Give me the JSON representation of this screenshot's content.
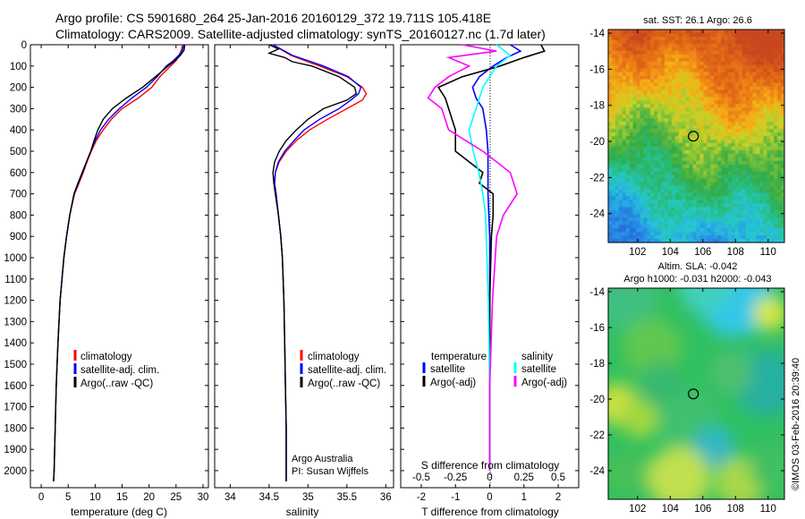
{
  "header": {
    "line1": "Argo profile: CS 5901680_264 25-Jan-2016 20160129_372 19.711S 105.418E",
    "line2": "Climatology: CARS2009. Satellite-adjusted climatology: synTS_20160127.nc (1.7d later)"
  },
  "colors": {
    "climatology": "#ff0000",
    "satellite": "#0000ff",
    "argo": "#000000",
    "cyan": "#00ffff",
    "magenta": "#ff00ff"
  },
  "chart_data": [
    {
      "type": "line",
      "panel": "temperature",
      "xlabel": "temperature (deg C)",
      "xlim": [
        -2,
        31
      ],
      "xticks": [
        "0",
        "5",
        "10",
        "15",
        "20",
        "25",
        "30"
      ],
      "ylim": [
        0,
        2080
      ],
      "yticks": [
        "0",
        "100",
        "200",
        "300",
        "400",
        "500",
        "600",
        "700",
        "800",
        "900",
        "1000",
        "1100",
        "1200",
        "1300",
        "1400",
        "1500",
        "1600",
        "1700",
        "1800",
        "1900",
        "2000"
      ],
      "legend": [
        "climatology",
        "satellite-adj. clim.",
        "Argo(..raw -QC)"
      ],
      "series": [
        {
          "name": "climatology",
          "color": "climatology",
          "depth": [
            0,
            25,
            50,
            75,
            100,
            150,
            200,
            250,
            300,
            350,
            400,
            450,
            500,
            550,
            600,
            650,
            700,
            800,
            900,
            1000,
            1200,
            1400,
            1600,
            1800,
            2000,
            2050
          ],
          "values": [
            26.2,
            26.0,
            25.6,
            25.0,
            24.0,
            22.0,
            20.5,
            18.0,
            15.0,
            13.0,
            11.5,
            10.2,
            9.3,
            8.5,
            7.8,
            7.0,
            6.2,
            5.3,
            4.7,
            4.2,
            3.5,
            3.1,
            2.8,
            2.6,
            2.4,
            2.3
          ]
        },
        {
          "name": "satellite-adj. clim.",
          "color": "satellite",
          "depth": [
            0,
            25,
            50,
            75,
            100,
            150,
            200,
            250,
            300,
            350,
            400,
            450,
            500,
            550,
            600,
            650,
            700,
            800,
            900,
            1000,
            1200,
            1400,
            1600,
            1800,
            2000,
            2050
          ],
          "values": [
            26.4,
            26.2,
            25.5,
            24.5,
            23.2,
            21.5,
            19.5,
            16.8,
            14.5,
            12.5,
            11.0,
            10.0,
            9.2,
            8.4,
            7.7,
            6.9,
            6.1,
            5.3,
            4.7,
            4.2,
            3.5,
            3.1,
            2.8,
            2.6,
            2.4,
            2.3
          ]
        },
        {
          "name": "Argo(..raw -QC)",
          "color": "argo",
          "depth": [
            0,
            25,
            50,
            75,
            100,
            150,
            200,
            250,
            300,
            350,
            400,
            450,
            500,
            550,
            600,
            650,
            700,
            800,
            900,
            1000,
            1200,
            1400,
            1600,
            1800,
            2000,
            2050
          ],
          "values": [
            26.6,
            26.5,
            25.8,
            24.8,
            23.5,
            21.2,
            18.8,
            15.8,
            13.2,
            11.5,
            10.5,
            9.8,
            9.2,
            8.4,
            7.6,
            6.8,
            6.1,
            5.3,
            4.7,
            4.2,
            3.5,
            3.1,
            2.8,
            2.6,
            2.4,
            2.3
          ]
        }
      ]
    },
    {
      "type": "line",
      "panel": "salinity",
      "xlabel": "salinity",
      "xlim": [
        33.8,
        36.1
      ],
      "xticks": [
        "34",
        "34.5",
        "35",
        "35.5",
        "36"
      ],
      "ylim": [
        0,
        2080
      ],
      "legend": [
        "climatology",
        "satellite-adj. clim.",
        "Argo(..raw -QC)"
      ],
      "annotations": [
        "Argo Australia",
        "PI: Susan Wijffels"
      ],
      "series": [
        {
          "name": "climatology",
          "color": "climatology",
          "depth": [
            0,
            50,
            100,
            150,
            200,
            230,
            260,
            300,
            350,
            400,
            450,
            500,
            550,
            600,
            650,
            700,
            800,
            900,
            1000,
            1200,
            1400,
            1600,
            1800,
            2000,
            2050
          ],
          "values": [
            34.55,
            34.78,
            35.15,
            35.5,
            35.7,
            35.75,
            35.7,
            35.5,
            35.25,
            35.02,
            34.85,
            34.72,
            34.63,
            34.58,
            34.57,
            34.59,
            34.62,
            34.65,
            34.67,
            34.69,
            34.7,
            34.71,
            34.72,
            34.72,
            34.72
          ]
        },
        {
          "name": "satellite-adj. clim.",
          "color": "satellite",
          "depth": [
            0,
            50,
            100,
            150,
            200,
            230,
            260,
            300,
            350,
            400,
            450,
            500,
            550,
            600,
            650,
            700,
            800,
            900,
            1000,
            1200,
            1400,
            1600,
            1800,
            2000,
            2050
          ],
          "values": [
            34.55,
            34.8,
            35.2,
            35.52,
            35.68,
            35.65,
            35.55,
            35.4,
            35.15,
            34.95,
            34.82,
            34.7,
            34.62,
            34.58,
            34.57,
            34.59,
            34.62,
            34.65,
            34.67,
            34.69,
            34.7,
            34.71,
            34.72,
            34.72,
            34.72
          ]
        },
        {
          "name": "Argo(..raw -QC)",
          "color": "argo",
          "depth": [
            0,
            20,
            40,
            60,
            80,
            100,
            150,
            200,
            230,
            260,
            300,
            350,
            400,
            450,
            500,
            550,
            600,
            650,
            700,
            800,
            900,
            1000,
            1200,
            1400,
            1600,
            1800,
            2000,
            2050
          ],
          "values": [
            34.5,
            34.62,
            34.5,
            34.7,
            34.8,
            35.05,
            35.4,
            35.6,
            35.62,
            35.5,
            35.2,
            35.0,
            34.85,
            34.72,
            34.63,
            34.57,
            34.55,
            34.56,
            34.58,
            34.62,
            34.65,
            34.67,
            34.69,
            34.7,
            34.71,
            34.72,
            34.72,
            34.72
          ]
        }
      ]
    },
    {
      "type": "line",
      "panel": "difference",
      "xlabel": "T difference from climatology",
      "xlabel_top": "S difference from climatology",
      "xlim": [
        -2.6,
        2.6
      ],
      "xticks": [
        "-2",
        "-1",
        "0",
        "1",
        "2"
      ],
      "xticks_s": [
        "-0.5",
        "-0.25",
        "0",
        "0.25",
        "0.5"
      ],
      "ylim": [
        0,
        2080
      ],
      "legend": {
        "temperature_header": "temperature",
        "salinity_header": "salinity",
        "items": [
          "satellite",
          "Argo(-adj)",
          "satellite",
          "Argo(-adj)"
        ]
      },
      "series": [
        {
          "name": "T satellite",
          "color": "satellite",
          "depth": [
            0,
            30,
            60,
            100,
            150,
            200,
            250,
            300,
            400,
            500,
            600,
            700,
            900,
            1200,
            1600,
            2000
          ],
          "values": [
            0.6,
            0.9,
            0.5,
            0.1,
            -0.3,
            -0.5,
            -0.4,
            -0.2,
            -0.1,
            -0.05,
            -0.05,
            -0.05,
            0,
            0,
            0,
            0
          ]
        },
        {
          "name": "T Argo(-adj)",
          "color": "argo",
          "depth": [
            0,
            30,
            60,
            100,
            150,
            200,
            250,
            300,
            400,
            500,
            550,
            600,
            650,
            700,
            800,
            900,
            1200,
            1600,
            2000
          ],
          "values": [
            1.5,
            1.6,
            1.0,
            0.3,
            -0.8,
            -1.5,
            -1.3,
            -1.2,
            -1.0,
            -1.0,
            -0.6,
            -0.2,
            -0.3,
            0.1,
            0.1,
            0.05,
            0,
            0,
            0
          ]
        },
        {
          "name": "S satellite",
          "color": "cyan",
          "depth": [
            0,
            50,
            100,
            200,
            300,
            400,
            500,
            600,
            700,
            800,
            1000,
            1200,
            1600,
            2000
          ],
          "values": [
            0.05,
            0.15,
            0.05,
            -0.05,
            -0.1,
            -0.15,
            -0.12,
            -0.08,
            -0.05,
            -0.03,
            -0.02,
            -0.01,
            0,
            0
          ]
        },
        {
          "name": "S Argo(-adj)",
          "color": "magenta",
          "depth": [
            0,
            30,
            60,
            100,
            150,
            200,
            250,
            300,
            400,
            500,
            600,
            700,
            800,
            900,
            1200,
            1600,
            2000
          ],
          "values": [
            -0.2,
            0.05,
            -0.3,
            -0.15,
            -0.3,
            -0.4,
            -0.45,
            -0.35,
            -0.3,
            -0.05,
            0.15,
            0.2,
            0.1,
            0.05,
            0.02,
            0,
            0
          ]
        }
      ]
    },
    {
      "type": "heatmap",
      "panel": "sst-map",
      "title": "sat. SST: 26.1  Argo: 26.6",
      "xticks": [
        "102",
        "104",
        "106",
        "108",
        "110"
      ],
      "yticks": [
        "-14",
        "-16",
        "-18",
        "-20",
        "-22",
        "-24"
      ],
      "xlim": [
        100.2,
        111.0
      ],
      "ylim": [
        -25.6,
        -13.8
      ],
      "marker": {
        "lon": 105.418,
        "lat": -19.711
      }
    },
    {
      "type": "heatmap",
      "panel": "sla-map",
      "title_line1": "Altim. SLA: -0.042",
      "title_line2": "Argo h1000: -0.031 h2000: -0.043",
      "xticks": [
        "102",
        "104",
        "106",
        "108",
        "110"
      ],
      "yticks": [
        "-14",
        "-16",
        "-18",
        "-20",
        "-22",
        "-24"
      ],
      "xlim": [
        100.2,
        111.0
      ],
      "ylim": [
        -25.6,
        -13.8
      ],
      "marker": {
        "lon": 105.418,
        "lat": -19.711
      }
    }
  ],
  "watermark": "©IMOS 03-Feb-2016 20:39:40"
}
